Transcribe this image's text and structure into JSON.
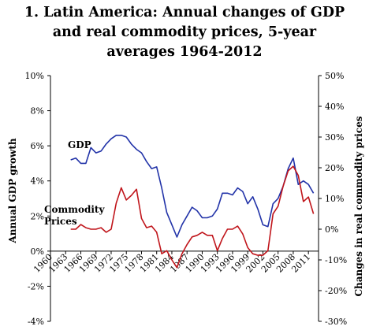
{
  "chart_data": {
    "type": "line",
    "title_lines": [
      "1. Latin America: Annual changes of GDP",
      "and real commodity prices, 5-year",
      "averages 1964-2012"
    ],
    "ylabel_left": "Annual GDP growth",
    "ylabel_right": "Changes in real commodity prices",
    "y_left_range": [
      -4,
      10
    ],
    "y_left_ticks": [
      "10%",
      "8%",
      "6%",
      "4%",
      "2%",
      "0%",
      "-2%",
      "-4%"
    ],
    "y_right_range": [
      -30,
      50
    ],
    "y_right_ticks": [
      "50%",
      "40%",
      "30%",
      "20%",
      "10%",
      "0%",
      "-10%",
      "-20%",
      "-30%"
    ],
    "x_range": [
      1960,
      2013
    ],
    "x_ticks": [
      "1960",
      "1963",
      "1966",
      "1969",
      "1972",
      "1975",
      "1978",
      "1981",
      "1984",
      "1987",
      "1990",
      "1993",
      "1996",
      "1999",
      "2002",
      "2005",
      "2008",
      "2011"
    ],
    "series": [
      {
        "name": "GDP",
        "label_lines": [
          "GDP"
        ],
        "axis": "left",
        "color": "#2233a8",
        "points": [
          [
            1964,
            5.2
          ],
          [
            1965,
            5.3
          ],
          [
            1966,
            5.0
          ],
          [
            1967,
            5.0
          ],
          [
            1968,
            5.9
          ],
          [
            1969,
            5.6
          ],
          [
            1970,
            5.7
          ],
          [
            1971,
            6.1
          ],
          [
            1972,
            6.4
          ],
          [
            1973,
            6.6
          ],
          [
            1974,
            6.6
          ],
          [
            1975,
            6.5
          ],
          [
            1976,
            6.1
          ],
          [
            1977,
            5.8
          ],
          [
            1978,
            5.6
          ],
          [
            1979,
            5.1
          ],
          [
            1980,
            4.7
          ],
          [
            1981,
            4.8
          ],
          [
            1982,
            3.6
          ],
          [
            1983,
            2.2
          ],
          [
            1984,
            1.5
          ],
          [
            1985,
            0.8
          ],
          [
            1986,
            1.5
          ],
          [
            1987,
            2.0
          ],
          [
            1988,
            2.5
          ],
          [
            1989,
            2.3
          ],
          [
            1990,
            1.9
          ],
          [
            1991,
            1.9
          ],
          [
            1992,
            2.0
          ],
          [
            1993,
            2.4
          ],
          [
            1994,
            3.3
          ],
          [
            1995,
            3.3
          ],
          [
            1996,
            3.2
          ],
          [
            1997,
            3.6
          ],
          [
            1998,
            3.4
          ],
          [
            1999,
            2.7
          ],
          [
            2000,
            3.1
          ],
          [
            2001,
            2.4
          ],
          [
            2002,
            1.5
          ],
          [
            2003,
            1.4
          ],
          [
            2004,
            2.7
          ],
          [
            2005,
            3.0
          ],
          [
            2006,
            3.7
          ],
          [
            2007,
            4.7
          ],
          [
            2008,
            5.3
          ],
          [
            2009,
            3.8
          ],
          [
            2010,
            4.0
          ],
          [
            2011,
            3.8
          ],
          [
            2012,
            3.3
          ]
        ]
      },
      {
        "name": "Commodity Prices",
        "label_lines": [
          "Commodity",
          "Prices"
        ],
        "axis": "right",
        "color": "#c0151b",
        "points": [
          [
            1964,
            0.0
          ],
          [
            1965,
            0.0
          ],
          [
            1966,
            1.5
          ],
          [
            1967,
            0.5
          ],
          [
            1968,
            0.0
          ],
          [
            1969,
            0.0
          ],
          [
            1970,
            0.5
          ],
          [
            1971,
            -1.0
          ],
          [
            1972,
            0.0
          ],
          [
            1973,
            8.5
          ],
          [
            1974,
            13.5
          ],
          [
            1975,
            9.5
          ],
          [
            1976,
            11.0
          ],
          [
            1977,
            13.0
          ],
          [
            1978,
            3.5
          ],
          [
            1979,
            0.5
          ],
          [
            1980,
            1.0
          ],
          [
            1981,
            -1.0
          ],
          [
            1982,
            -8.0
          ],
          [
            1983,
            -7.0
          ],
          [
            1984,
            -10.0
          ],
          [
            1985,
            -12.5
          ],
          [
            1986,
            -8.0
          ],
          [
            1987,
            -5.0
          ],
          [
            1988,
            -2.5
          ],
          [
            1989,
            -2.0
          ],
          [
            1990,
            -1.0
          ],
          [
            1991,
            -2.0
          ],
          [
            1992,
            -2.0
          ],
          [
            1993,
            -7.0
          ],
          [
            1994,
            -3.0
          ],
          [
            1995,
            0.0
          ],
          [
            1996,
            0.0
          ],
          [
            1997,
            1.0
          ],
          [
            1998,
            -1.5
          ],
          [
            1999,
            -6.0
          ],
          [
            2000,
            -8.0
          ],
          [
            2001,
            -8.5
          ],
          [
            2002,
            -8.5
          ],
          [
            2003,
            -7.0
          ],
          [
            2004,
            5.0
          ],
          [
            2005,
            7.5
          ],
          [
            2006,
            14.0
          ],
          [
            2007,
            19.0
          ],
          [
            2008,
            20.5
          ],
          [
            2009,
            17.5
          ],
          [
            2010,
            9.0
          ],
          [
            2011,
            10.5
          ],
          [
            2012,
            5.0
          ]
        ]
      }
    ],
    "legend": "inline labels",
    "grid": false
  }
}
